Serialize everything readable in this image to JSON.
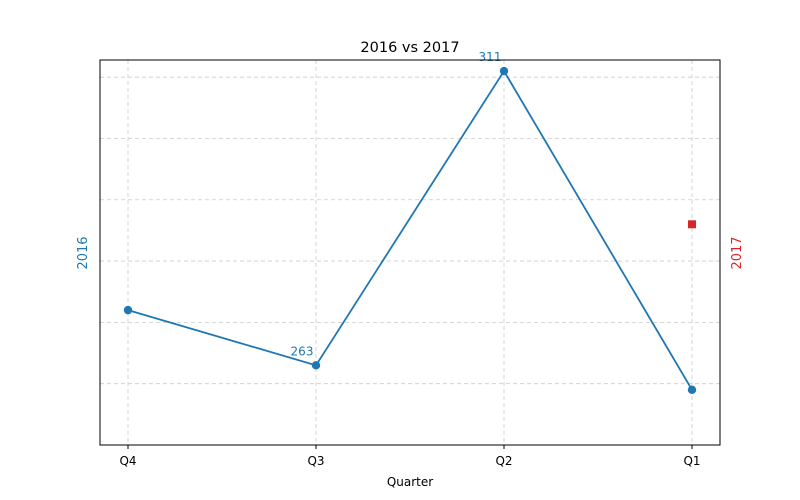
{
  "chart_data": {
    "type": "line",
    "title": "2016 vs 2017",
    "xlabel": "Quarter",
    "categories": [
      "Q4",
      "Q3",
      "Q2",
      "Q1"
    ],
    "grid": true,
    "ylim": [
      250,
      312.8
    ],
    "series": [
      {
        "name": "2016",
        "axis": "left",
        "color": "#1f77b4",
        "marker": "circle",
        "values": [
          272,
          263,
          311,
          259
        ],
        "labels": [
          null,
          "263",
          "311",
          null
        ]
      },
      {
        "name": "2017",
        "axis": "right",
        "color": "#d62728",
        "marker": "square",
        "values": [
          null,
          null,
          null,
          286
        ],
        "labels": [
          null,
          null,
          null,
          null
        ]
      }
    ],
    "ylabel_left": "2016",
    "ylabel_right": "2017"
  }
}
